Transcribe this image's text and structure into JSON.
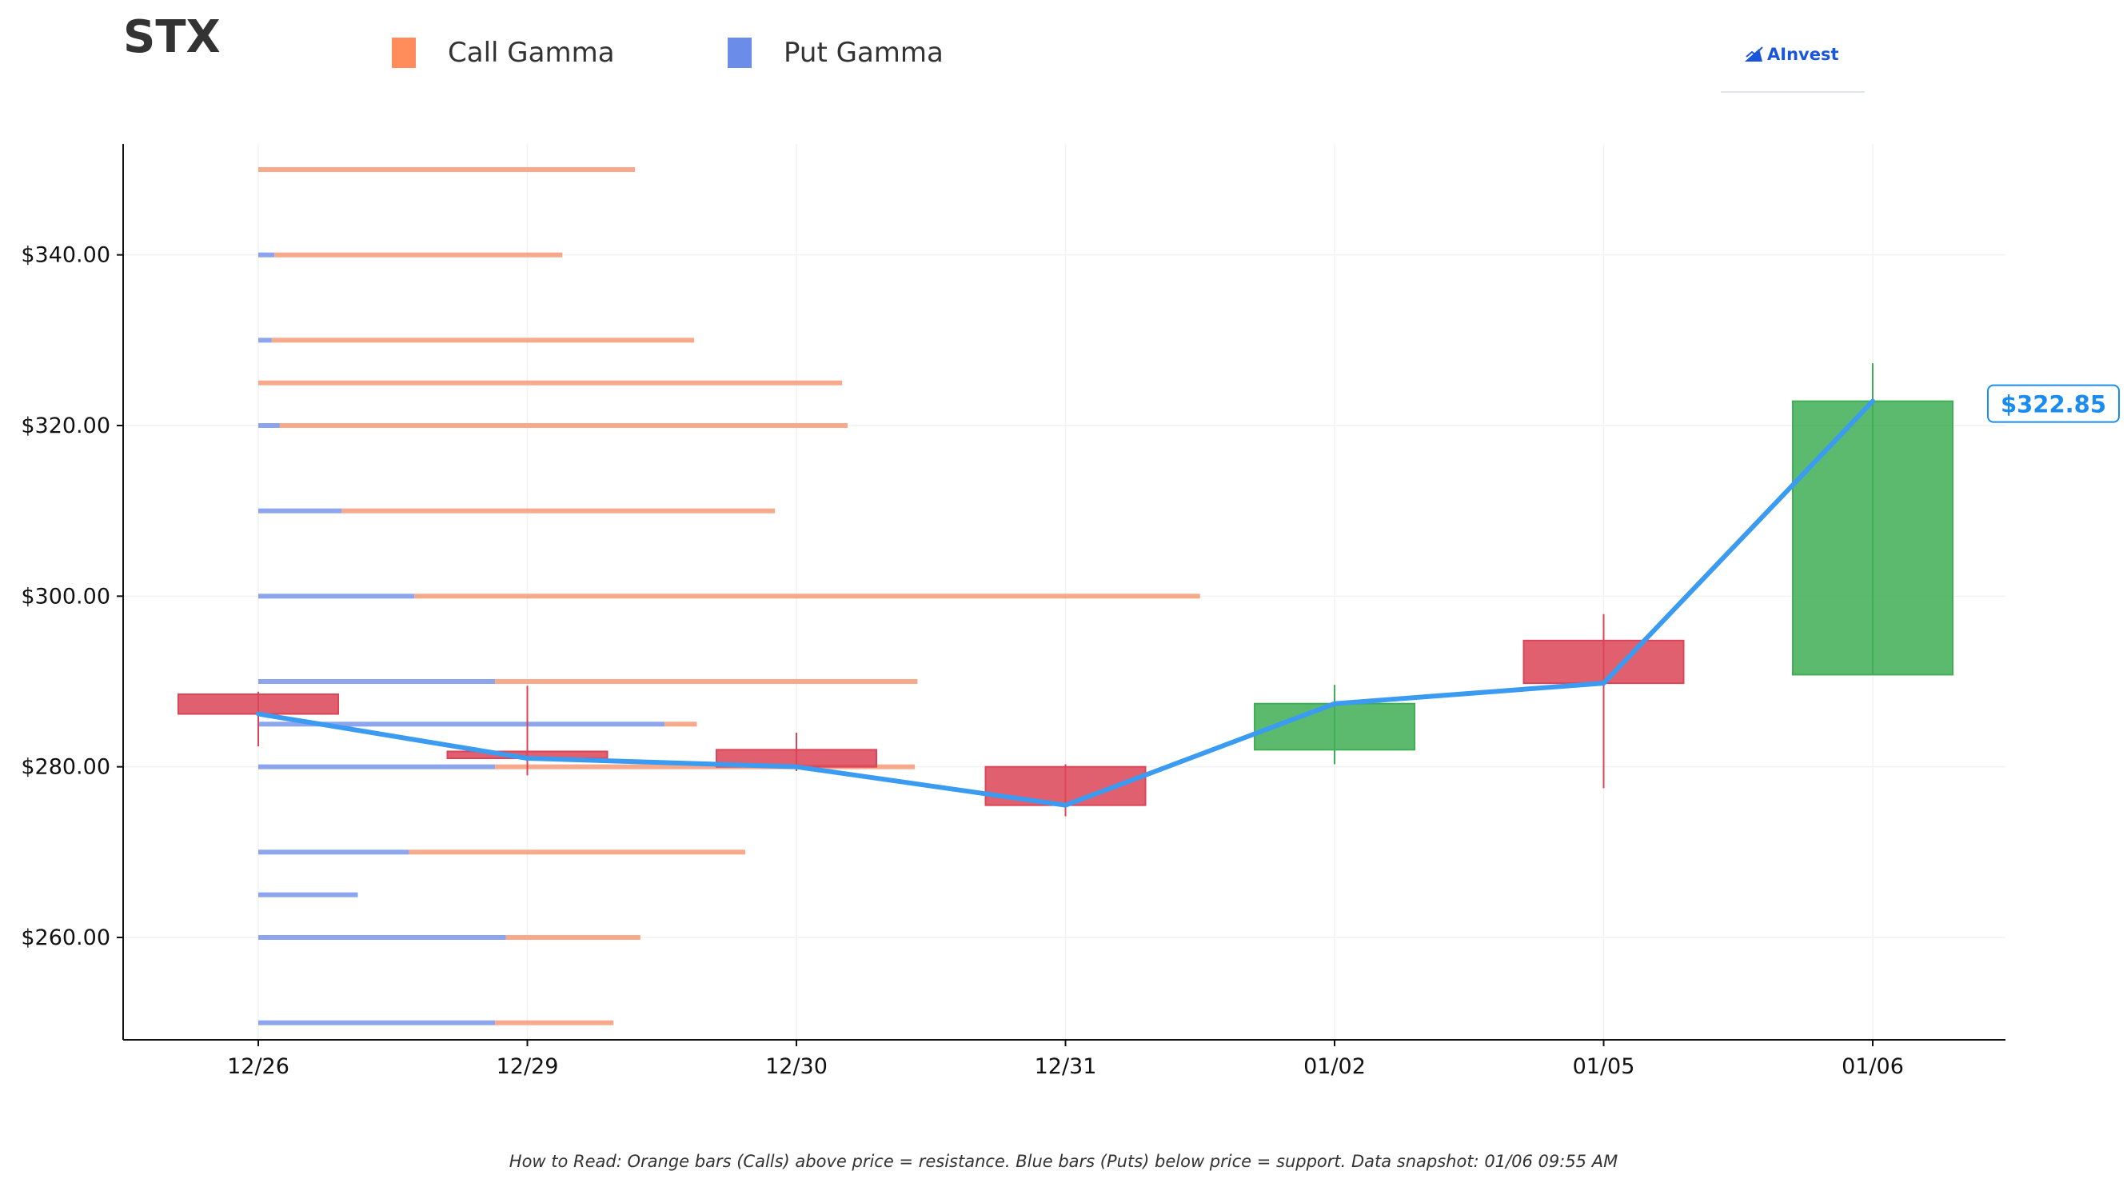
{
  "ticker": "STX",
  "brand": {
    "name": "AInvest"
  },
  "legend": [
    {
      "label": "Call Gamma",
      "color": "#ff8c5a"
    },
    {
      "label": "Put Gamma",
      "color": "#6b8ce8"
    }
  ],
  "footnote": "How to Read: Orange bars (Calls) above price = resistance. Blue bars (Puts) below price = support. Data snapshot: 01/06 09:55 AM",
  "colors": {
    "call": "#f5a07e",
    "put": "#7f9bea",
    "up": "#3fae55",
    "down": "#dc4457",
    "price_line": "#3a9bf0",
    "price_tag": "#1a8cf0"
  },
  "chart_data": {
    "type": "candlestick",
    "title": "",
    "xlabel": "",
    "ylabel": "",
    "ylim": [
      248,
      353
    ],
    "yticks": [
      260,
      280,
      300,
      320,
      340
    ],
    "ytick_labels": [
      "$260.00",
      "$280.00",
      "$300.00",
      "$320.00",
      "$340.00"
    ],
    "grid": true,
    "categories": [
      "12/26",
      "12/29",
      "12/30",
      "12/31",
      "01/02",
      "01/05",
      "01/06"
    ],
    "candles": [
      {
        "date": "12/26",
        "open": 288.5,
        "close": 286.2,
        "high": 288.8,
        "low": 282.4
      },
      {
        "date": "12/29",
        "open": 281.8,
        "close": 281.0,
        "high": 289.5,
        "low": 279.0
      },
      {
        "date": "12/30",
        "open": 282.0,
        "close": 280.0,
        "high": 284.0,
        "low": 279.5
      },
      {
        "date": "12/31",
        "open": 280.0,
        "close": 275.5,
        "high": 280.3,
        "low": 274.2
      },
      {
        "date": "01/02",
        "open": 282.0,
        "close": 287.4,
        "high": 289.6,
        "low": 280.3
      },
      {
        "date": "01/05",
        "open": 294.8,
        "close": 289.8,
        "high": 297.9,
        "low": 277.5
      },
      {
        "date": "01/06",
        "open": 290.8,
        "close": 322.85,
        "high": 327.3,
        "low": 290.8
      }
    ],
    "price_line": [
      286.2,
      281.0,
      280.0,
      275.5,
      287.4,
      289.8,
      322.85
    ],
    "last_price_label": "$322.85",
    "gamma_levels": [
      {
        "strike": 350,
        "put": 0.0,
        "call": 1.4
      },
      {
        "strike": 340,
        "put": 0.06,
        "call": 1.07
      },
      {
        "strike": 330,
        "put": 0.05,
        "call": 1.57
      },
      {
        "strike": 325,
        "put": 0.0,
        "call": 2.17
      },
      {
        "strike": 320,
        "put": 0.08,
        "call": 2.11
      },
      {
        "strike": 310,
        "put": 0.31,
        "call": 1.61
      },
      {
        "strike": 300,
        "put": 0.58,
        "call": 2.92
      },
      {
        "strike": 290,
        "put": 0.88,
        "call": 1.57
      },
      {
        "strike": 285,
        "put": 1.51,
        "call": 0.12
      },
      {
        "strike": 280,
        "put": 0.88,
        "call": 1.56
      },
      {
        "strike": 270,
        "put": 0.56,
        "call": 1.25
      },
      {
        "strike": 265,
        "put": 0.37,
        "call": 0.0
      },
      {
        "strike": 260,
        "put": 0.92,
        "call": 0.5
      },
      {
        "strike": 250,
        "put": 0.88,
        "call": 0.44
      }
    ]
  }
}
